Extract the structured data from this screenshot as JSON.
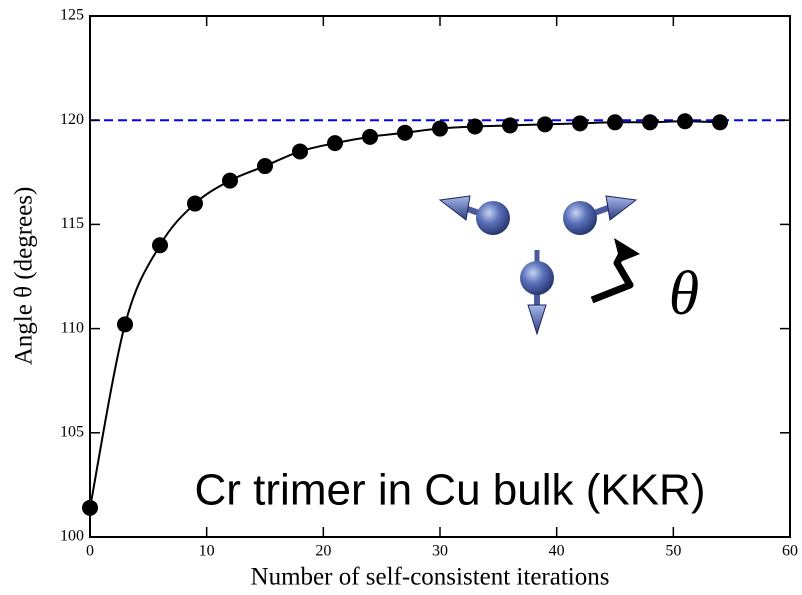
{
  "chart_data": {
    "type": "line",
    "xlabel": "Number of self-consistent iterations",
    "ylabel": "Angle θ (degrees)",
    "annotations": [
      "Cr trimer in Cu bulk (KKR)",
      "θ"
    ],
    "x": [
      0,
      3,
      6,
      9,
      12,
      15,
      18,
      21,
      24,
      27,
      30,
      33,
      36,
      39,
      42,
      45,
      48,
      51,
      54
    ],
    "series": [
      {
        "color": "#000000",
        "markers": true,
        "values": [
          101.4,
          110.2,
          114.0,
          116.0,
          117.1,
          117.8,
          118.5,
          118.9,
          119.2,
          119.4,
          119.6,
          119.7,
          119.75,
          119.8,
          119.85,
          119.9,
          119.9,
          119.95,
          119.9
        ]
      }
    ],
    "reference_line": {
      "value": 120,
      "color": "#0000ff",
      "style": "dashed"
    },
    "xlim": [
      0,
      60
    ],
    "xticks": [
      0,
      10,
      20,
      30,
      40,
      50,
      60
    ],
    "ylim": [
      100,
      125
    ],
    "yticks": [
      100,
      105,
      110,
      115,
      120,
      125
    ],
    "grid": false
  }
}
